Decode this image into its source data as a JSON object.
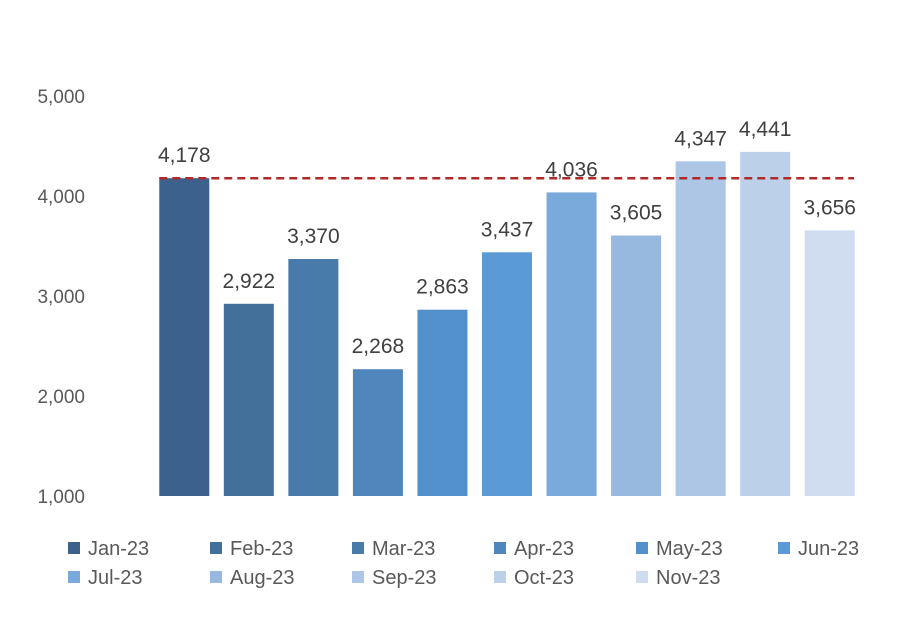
{
  "chart_data": {
    "type": "bar",
    "title": "",
    "xlabel": "",
    "ylabel": "",
    "categories": [
      "Jan-23",
      "Feb-23",
      "Mar-23",
      "Apr-23",
      "May-23",
      "Jun-23",
      "Jul-23",
      "Aug-23",
      "Sep-23",
      "Oct-23",
      "Nov-23"
    ],
    "values": [
      4178,
      2922,
      3370,
      2268,
      2863,
      3437,
      4036,
      3605,
      4347,
      4441,
      3656
    ],
    "data_labels": [
      "4,178",
      "2,922",
      "3,370",
      "2,268",
      "2,863",
      "3,437",
      "4,036",
      "3,605",
      "4,347",
      "4,441",
      "3,656"
    ],
    "colors": [
      "#3b618c",
      "#436f9b",
      "#487ba9",
      "#4f86bb",
      "#5290cb",
      "#5a9bd5",
      "#7aaadb",
      "#97b8df",
      "#aec6e5",
      "#bcd0ea",
      "#d0dcef"
    ],
    "ylim": [
      1000,
      5000
    ],
    "yticks": [
      1000,
      2000,
      3000,
      4000,
      5000
    ],
    "ytick_labels": [
      "1,000",
      "2,000",
      "3,000",
      "4,000",
      "5,000"
    ],
    "reference_line": {
      "value": 4178,
      "style": "dashed",
      "color": "#b02a2a"
    },
    "grid": false,
    "legend_position": "bottom"
  }
}
